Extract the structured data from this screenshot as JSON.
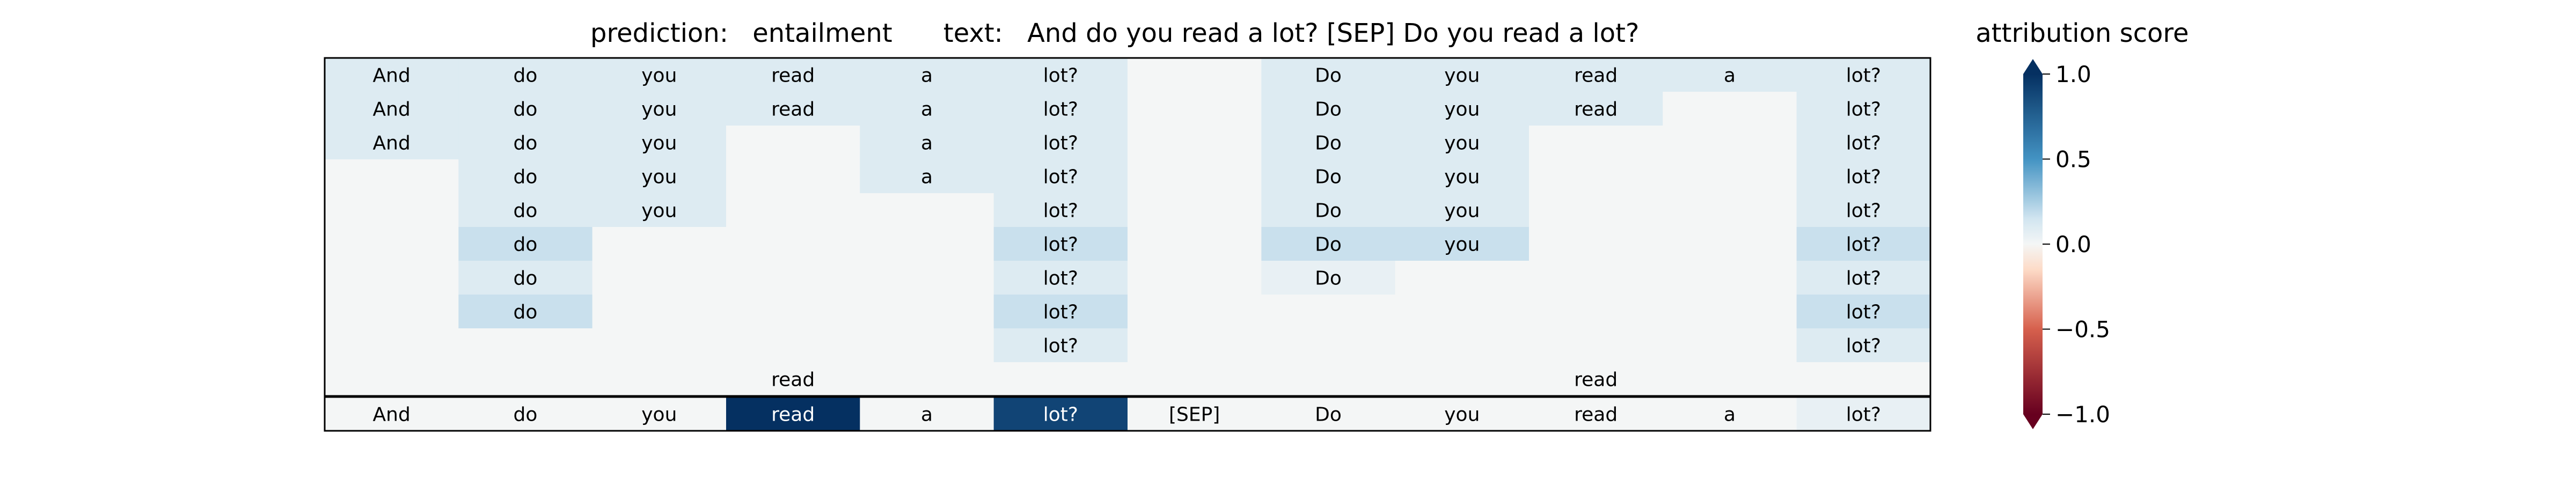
{
  "header": {
    "prediction_label": "prediction:",
    "prediction_value": "entailment",
    "text_label": "text:",
    "text_value": "And do you read a lot? [SEP] Do you read a lot?"
  },
  "colorbar": {
    "title": "attribution score",
    "ticks": [
      {
        "value": 1.0,
        "label": "1.0"
      },
      {
        "value": 0.5,
        "label": "0.5"
      },
      {
        "value": 0.0,
        "label": "0.0"
      },
      {
        "value": -0.5,
        "label": "−0.5"
      },
      {
        "value": -1.0,
        "label": "−1.0"
      }
    ],
    "colormap": "RdBu",
    "range": [
      -1.0,
      1.0
    ],
    "extend": "both"
  },
  "chart_data": {
    "type": "heatmap",
    "columns": [
      "And",
      "do",
      "you",
      "read",
      "a",
      "lot?",
      "[SEP]",
      "Do",
      "you",
      "read",
      "a",
      "lot?"
    ],
    "rows": [
      {
        "tokens": [
          "And",
          "do",
          "you",
          "read",
          "a",
          "lot?",
          "",
          "Do",
          "you",
          "read",
          "a",
          "lot?"
        ],
        "values": [
          0.1,
          0.1,
          0.1,
          0.1,
          0.1,
          0.1,
          0.0,
          0.1,
          0.1,
          0.1,
          0.1,
          0.1
        ]
      },
      {
        "tokens": [
          "And",
          "do",
          "you",
          "read",
          "a",
          "lot?",
          "",
          "Do",
          "you",
          "read",
          "",
          "lot?"
        ],
        "values": [
          0.1,
          0.1,
          0.1,
          0.1,
          0.1,
          0.1,
          0.0,
          0.1,
          0.1,
          0.1,
          0.0,
          0.1
        ]
      },
      {
        "tokens": [
          "And",
          "do",
          "you",
          "",
          "a",
          "lot?",
          "",
          "Do",
          "you",
          "",
          "",
          "lot?"
        ],
        "values": [
          0.1,
          0.1,
          0.1,
          0.0,
          0.1,
          0.1,
          0.0,
          0.1,
          0.1,
          0.0,
          0.0,
          0.1
        ]
      },
      {
        "tokens": [
          "",
          "do",
          "you",
          "",
          "a",
          "lot?",
          "",
          "Do",
          "you",
          "",
          "",
          "lot?"
        ],
        "values": [
          0.0,
          0.1,
          0.1,
          0.0,
          0.1,
          0.1,
          0.0,
          0.1,
          0.1,
          0.0,
          0.0,
          0.1
        ]
      },
      {
        "tokens": [
          "",
          "do",
          "you",
          "",
          "",
          "lot?",
          "",
          "Do",
          "you",
          "",
          "",
          "lot?"
        ],
        "values": [
          0.0,
          0.1,
          0.1,
          0.0,
          0.0,
          0.1,
          0.0,
          0.1,
          0.1,
          0.0,
          0.0,
          0.1
        ]
      },
      {
        "tokens": [
          "",
          "do",
          "",
          "",
          "",
          "lot?",
          "",
          "Do",
          "you",
          "",
          "",
          "lot?"
        ],
        "values": [
          0.0,
          0.17,
          0.0,
          0.0,
          0.0,
          0.17,
          0.0,
          0.17,
          0.17,
          0.0,
          0.0,
          0.17
        ]
      },
      {
        "tokens": [
          "",
          "do",
          "",
          "",
          "",
          "lot?",
          "",
          "Do",
          "",
          "",
          "",
          "lot?"
        ],
        "values": [
          0.0,
          0.1,
          0.0,
          0.0,
          0.0,
          0.1,
          0.0,
          0.05,
          0.0,
          0.0,
          0.0,
          0.1
        ]
      },
      {
        "tokens": [
          "",
          "do",
          "",
          "",
          "",
          "lot?",
          "",
          "",
          "",
          "",
          "",
          "lot?"
        ],
        "values": [
          0.0,
          0.17,
          0.0,
          0.0,
          0.0,
          0.17,
          0.0,
          0.0,
          0.0,
          0.0,
          0.0,
          0.17
        ]
      },
      {
        "tokens": [
          "",
          "",
          "",
          "",
          "",
          "lot?",
          "",
          "",
          "",
          "",
          "",
          "lot?"
        ],
        "values": [
          0.0,
          0.0,
          0.0,
          0.0,
          0.0,
          0.1,
          0.0,
          0.0,
          0.0,
          0.0,
          0.0,
          0.1
        ]
      },
      {
        "tokens": [
          "",
          "",
          "",
          "read",
          "",
          "",
          "",
          "",
          "",
          "read",
          "",
          ""
        ],
        "values": [
          0.0,
          0.0,
          0.0,
          0.0,
          0.0,
          0.0,
          0.0,
          0.0,
          0.0,
          0.0,
          0.0,
          0.0
        ]
      }
    ],
    "summary_row": {
      "tokens": [
        "And",
        "do",
        "you",
        "read",
        "a",
        "lot?",
        "[SEP]",
        "Do",
        "you",
        "read",
        "a",
        "lot?"
      ],
      "values": [
        0.0,
        0.0,
        0.0,
        1.0,
        0.0,
        0.9,
        0.0,
        0.0,
        0.0,
        0.0,
        0.0,
        0.05
      ]
    },
    "vmin": -1.0,
    "vmax": 1.0
  }
}
